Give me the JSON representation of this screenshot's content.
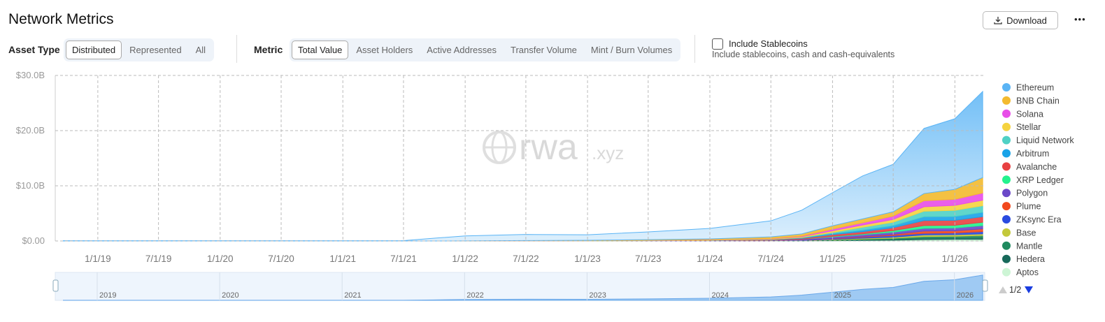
{
  "header": {
    "title": "Network Metrics",
    "download": "Download",
    "menu": "•••"
  },
  "filters": {
    "asset_type": {
      "label": "Asset Type",
      "options": [
        "Distributed",
        "Represented",
        "All"
      ],
      "selected": 0
    },
    "metric": {
      "label": "Metric",
      "options": [
        "Total Value",
        "Asset Holders",
        "Active Addresses",
        "Transfer Volume",
        "Mint / Burn Volumes"
      ],
      "selected": 0
    },
    "stablecoins": {
      "label": "Include Stablecoins",
      "description": "Include stablecoins, cash and cash-equivalents",
      "checked": false
    }
  },
  "chart_data": {
    "type": "stacked-area",
    "watermark": {
      "main": "rwa",
      "suffix": ".xyz"
    },
    "x": [
      "9/20/18",
      "7/1/19",
      "1/1/20",
      "7/1/20",
      "1/1/21",
      "7/1/21",
      "10/1/21",
      "1/1/22",
      "7/1/22",
      "1/1/23",
      "7/1/23",
      "1/1/24",
      "7/1/24",
      "10/1/24",
      "1/1/25",
      "4/1/25",
      "7/1/25",
      "10/1/25",
      "1/1/26",
      "3/25/26"
    ],
    "xlim": [
      "8/27/18",
      "3/31/26"
    ],
    "xticks": [
      "1/1/19",
      "7/1/19",
      "1/1/20",
      "7/1/20",
      "1/1/21",
      "7/1/21",
      "1/1/22",
      "7/1/22",
      "1/1/23",
      "7/1/23",
      "1/1/24",
      "7/1/24",
      "1/1/25",
      "7/1/25",
      "1/1/26"
    ],
    "ylim": [
      0,
      30
    ],
    "yticks": [
      {
        "value": 0,
        "label": "$0.00"
      },
      {
        "value": 10,
        "label": "$10.0B"
      },
      {
        "value": 20,
        "label": "$20.0B"
      },
      {
        "value": 30,
        "label": "$30.0B"
      }
    ],
    "grid": true,
    "legend": "right",
    "legend_page": "1/2",
    "series": [
      {
        "name": "Ethereum",
        "color": "#5ab4f5",
        "values": [
          0.05,
          0.05,
          0.05,
          0.05,
          0.05,
          0.06,
          0.5,
          0.9,
          1.1,
          1.0,
          1.4,
          1.9,
          2.9,
          4.3,
          6.0,
          7.8,
          8.6,
          11.8,
          12.8,
          15.6
        ]
      },
      {
        "name": "BNB Chain",
        "color": "#f3ba2f",
        "values": [
          0,
          0,
          0,
          0,
          0,
          0,
          0,
          0.02,
          0.05,
          0.08,
          0.1,
          0.15,
          0.3,
          0.4,
          0.6,
          0.7,
          0.8,
          1.3,
          1.8,
          2.8
        ]
      },
      {
        "name": "Solana",
        "color": "#e84ee8",
        "values": [
          0,
          0,
          0,
          0,
          0,
          0,
          0,
          0,
          0,
          0,
          0.01,
          0.02,
          0.05,
          0.1,
          0.3,
          0.4,
          0.6,
          1.1,
          1.1,
          1.3
        ]
      },
      {
        "name": "Stellar",
        "color": "#f5d33f",
        "values": [
          0,
          0,
          0,
          0,
          0,
          0,
          0,
          0,
          0.02,
          0.03,
          0.05,
          0.06,
          0.1,
          0.15,
          0.3,
          0.4,
          0.5,
          0.8,
          0.9,
          1.0
        ]
      },
      {
        "name": "Liquid Network",
        "color": "#4fd1c5",
        "values": [
          0,
          0,
          0,
          0,
          0,
          0,
          0,
          0,
          0,
          0,
          0,
          0,
          0.01,
          0.05,
          0.2,
          0.5,
          0.6,
          1.0,
          1.1,
          1.2
        ]
      },
      {
        "name": "Arbitrum",
        "color": "#1aa3e8",
        "values": [
          0,
          0,
          0,
          0,
          0,
          0,
          0,
          0,
          0,
          0,
          0.01,
          0.02,
          0.05,
          0.1,
          0.2,
          0.3,
          0.4,
          0.7,
          0.7,
          0.8
        ]
      },
      {
        "name": "Avalanche",
        "color": "#e84142",
        "values": [
          0,
          0,
          0,
          0,
          0,
          0,
          0,
          0,
          0,
          0,
          0.02,
          0.05,
          0.1,
          0.15,
          0.3,
          0.4,
          0.5,
          0.9,
          0.9,
          1.0
        ]
      },
      {
        "name": "XRP Ledger",
        "color": "#23f28e",
        "values": [
          0,
          0,
          0,
          0,
          0,
          0,
          0,
          0,
          0,
          0,
          0,
          0,
          0.01,
          0.02,
          0.1,
          0.15,
          0.3,
          0.5,
          0.5,
          0.6
        ]
      },
      {
        "name": "Polygon",
        "color": "#6b48c8",
        "values": [
          0,
          0,
          0,
          0,
          0,
          0,
          0,
          0,
          0.01,
          0.02,
          0.05,
          0.08,
          0.1,
          0.15,
          0.3,
          0.35,
          0.4,
          0.5,
          0.5,
          0.6
        ]
      },
      {
        "name": "Plume",
        "color": "#f2491d",
        "values": [
          0,
          0,
          0,
          0,
          0,
          0,
          0,
          0,
          0,
          0,
          0,
          0,
          0,
          0,
          0.05,
          0.1,
          0.2,
          0.4,
          0.4,
          0.5
        ]
      },
      {
        "name": "ZKsync Era",
        "color": "#2a4be0",
        "values": [
          0,
          0,
          0,
          0,
          0,
          0,
          0,
          0,
          0,
          0,
          0,
          0,
          0,
          0.05,
          0.1,
          0.2,
          0.3,
          0.3,
          0.3,
          0.4
        ]
      },
      {
        "name": "Base",
        "color": "#c3c83a",
        "values": [
          0,
          0,
          0,
          0,
          0,
          0,
          0,
          0,
          0,
          0,
          0,
          0,
          0.01,
          0.02,
          0.1,
          0.15,
          0.2,
          0.3,
          0.3,
          0.3
        ]
      },
      {
        "name": "Mantle",
        "color": "#1f8a5f",
        "values": [
          0,
          0,
          0,
          0,
          0,
          0,
          0,
          0,
          0,
          0,
          0,
          0,
          0,
          0.05,
          0.1,
          0.15,
          0.2,
          0.3,
          0.3,
          0.4
        ]
      },
      {
        "name": "Hedera",
        "color": "#17695a",
        "values": [
          0,
          0,
          0,
          0,
          0,
          0,
          0,
          0,
          0,
          0,
          0,
          0,
          0.01,
          0.02,
          0.05,
          0.1,
          0.15,
          0.25,
          0.25,
          0.3
        ]
      },
      {
        "name": "Aptos",
        "color": "#cdf5d5",
        "values": [
          0,
          0,
          0,
          0,
          0,
          0,
          0,
          0,
          0,
          0,
          0,
          0,
          0.01,
          0.02,
          0.05,
          0.1,
          0.15,
          0.25,
          0.3,
          0.3
        ]
      }
    ],
    "navigator": {
      "labels": [
        "2019",
        "2020",
        "2021",
        "2022",
        "2023",
        "2024",
        "2025",
        "2026"
      ]
    }
  }
}
